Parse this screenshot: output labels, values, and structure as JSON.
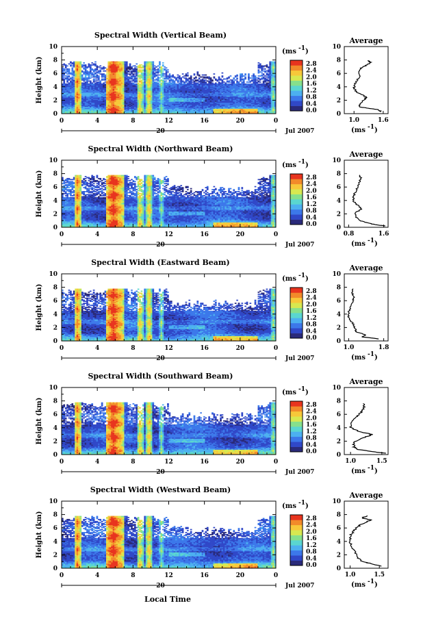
{
  "figure": {
    "xlabel": "Local Time",
    "date_label": "Jul 2007",
    "day_label": "20",
    "x_ticks": [
      "0",
      "4",
      "8",
      "12",
      "16",
      "20",
      "0"
    ],
    "y_ticks": [
      "0",
      "2",
      "4",
      "6",
      "8",
      "10"
    ],
    "ylabel": "Height (km)",
    "colorbar_unit_text": "(ms",
    "colorbar_unit_exp": "-1",
    "colorbar_unit_close": ")",
    "colorbar_ticks": [
      "0.0",
      "0.4",
      "0.8",
      "1.2",
      "1.6",
      "2.0",
      "2.4",
      "2.8"
    ],
    "average_title": "Average",
    "average_xlabel_text": "(ms",
    "average_xlabel_exp": "-1",
    "average_xlabel_close": ")",
    "colors": {
      "scale": [
        "#2a2a7a",
        "#3048c8",
        "#3c78ea",
        "#4cb0f0",
        "#5ad6d0",
        "#86e08c",
        "#d8e850",
        "#f7c83a",
        "#f28a2a",
        "#e8341e"
      ]
    }
  },
  "chart_data": [
    {
      "type": "heatmap",
      "title": "Spectral Width (Vertical Beam)",
      "x_range_hours": [
        0,
        24
      ],
      "ylim": [
        0,
        10
      ],
      "color_range": [
        0.0,
        2.8
      ],
      "top_height_km": 7.8,
      "average": {
        "title": "Average",
        "x_ticks": [
          "1.0",
          "1.6"
        ],
        "xlim": [
          0.8,
          1.7
        ],
        "profile": [
          [
            1.55,
            0.3
          ],
          [
            1.5,
            0.6
          ],
          [
            1.3,
            0.8
          ],
          [
            1.1,
            1.0
          ],
          [
            1.12,
            1.5
          ],
          [
            1.2,
            2.0
          ],
          [
            1.25,
            2.4
          ],
          [
            1.18,
            2.8
          ],
          [
            1.05,
            3.2
          ],
          [
            1.0,
            3.8
          ],
          [
            1.02,
            4.4
          ],
          [
            1.06,
            5.0
          ],
          [
            1.12,
            5.6
          ],
          [
            1.1,
            6.2
          ],
          [
            1.15,
            6.8
          ],
          [
            1.25,
            7.2
          ],
          [
            1.35,
            7.6
          ],
          [
            1.28,
            7.9
          ]
        ]
      }
    },
    {
      "type": "heatmap",
      "title": "Spectral Width (Northward Beam)",
      "x_range_hours": [
        0,
        24
      ],
      "ylim": [
        0,
        10
      ],
      "color_range": [
        0.0,
        2.8
      ],
      "top_height_km": 7.8,
      "average": {
        "title": "Average",
        "x_ticks": [
          "0.8",
          "1.6"
        ],
        "xlim": [
          0.7,
          1.7
        ],
        "profile": [
          [
            1.65,
            0.2
          ],
          [
            1.4,
            0.4
          ],
          [
            1.2,
            0.7
          ],
          [
            1.05,
            1.0
          ],
          [
            0.95,
            1.6
          ],
          [
            0.95,
            2.2
          ],
          [
            1.1,
            2.7
          ],
          [
            1.02,
            3.2
          ],
          [
            0.92,
            3.8
          ],
          [
            0.9,
            4.5
          ],
          [
            0.95,
            5.2
          ],
          [
            1.0,
            6.0
          ],
          [
            1.05,
            6.8
          ],
          [
            1.08,
            7.4
          ],
          [
            1.05,
            7.8
          ]
        ]
      }
    },
    {
      "type": "heatmap",
      "title": "Spectral Width (Eastward Beam)",
      "x_range_hours": [
        0,
        24
      ],
      "ylim": [
        0,
        10
      ],
      "color_range": [
        0.0,
        2.8
      ],
      "top_height_km": 7.8,
      "average": {
        "title": "Average",
        "x_ticks": [
          "1.0",
          "1.8"
        ],
        "xlim": [
          0.9,
          1.9
        ],
        "profile": [
          [
            1.7,
            0.3
          ],
          [
            1.3,
            0.6
          ],
          [
            1.4,
            0.9
          ],
          [
            1.18,
            1.3
          ],
          [
            1.15,
            1.8
          ],
          [
            1.12,
            2.4
          ],
          [
            1.05,
            3.0
          ],
          [
            1.0,
            3.6
          ],
          [
            1.0,
            4.4
          ],
          [
            1.05,
            5.2
          ],
          [
            1.1,
            6.0
          ],
          [
            1.12,
            6.6
          ],
          [
            1.08,
            7.2
          ],
          [
            1.1,
            7.8
          ]
        ]
      }
    },
    {
      "type": "heatmap",
      "title": "Spectral Width (Southward Beam)",
      "x_range_hours": [
        0,
        24
      ],
      "ylim": [
        0,
        10
      ],
      "color_range": [
        0.0,
        2.8
      ],
      "top_height_km": 7.8,
      "average": {
        "title": "Average",
        "x_ticks": [
          "1.0",
          "1.5"
        ],
        "xlim": [
          0.9,
          1.6
        ],
        "profile": [
          [
            1.55,
            0.2
          ],
          [
            1.3,
            0.5
          ],
          [
            1.1,
            0.8
          ],
          [
            1.05,
            1.2
          ],
          [
            1.05,
            1.8
          ],
          [
            1.2,
            2.5
          ],
          [
            1.35,
            3.0
          ],
          [
            1.15,
            3.4
          ],
          [
            1.0,
            4.0
          ],
          [
            1.0,
            4.6
          ],
          [
            1.05,
            5.2
          ],
          [
            1.12,
            5.8
          ],
          [
            1.18,
            6.4
          ],
          [
            1.22,
            7.0
          ],
          [
            1.2,
            7.6
          ]
        ]
      }
    },
    {
      "type": "heatmap",
      "title": "Spectral Width (Westward Beam)",
      "x_range_hours": [
        0,
        24
      ],
      "ylim": [
        0,
        10
      ],
      "color_range": [
        0.0,
        2.8
      ],
      "top_height_km": 7.8,
      "average": {
        "title": "Average",
        "x_ticks": [
          "1.0",
          "1.5"
        ],
        "xlim": [
          0.9,
          1.65
        ],
        "profile": [
          [
            1.55,
            0.3
          ],
          [
            1.35,
            0.7
          ],
          [
            1.2,
            1.0
          ],
          [
            1.12,
            1.6
          ],
          [
            1.08,
            2.4
          ],
          [
            1.02,
            3.2
          ],
          [
            1.0,
            4.0
          ],
          [
            1.0,
            4.8
          ],
          [
            1.05,
            5.4
          ],
          [
            1.1,
            6.0
          ],
          [
            1.2,
            6.6
          ],
          [
            1.35,
            7.2
          ],
          [
            1.2,
            7.5
          ],
          [
            1.3,
            7.8
          ]
        ]
      }
    }
  ]
}
